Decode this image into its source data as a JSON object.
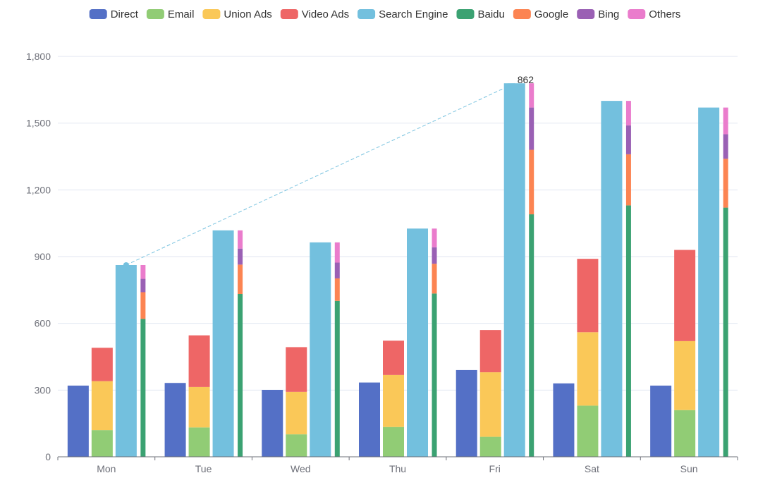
{
  "chart_data": {
    "type": "bar",
    "stacked_groups": true,
    "categories": [
      "Mon",
      "Tue",
      "Wed",
      "Thu",
      "Fri",
      "Sat",
      "Sun"
    ],
    "ylim": [
      0,
      1800
    ],
    "yticks": [
      0,
      300,
      600,
      900,
      1200,
      1500,
      1800
    ],
    "ytick_labels": [
      "0",
      "300",
      "600",
      "900",
      "1,200",
      "1,500",
      "1,800"
    ],
    "grid": true,
    "legend_position": "top",
    "series": [
      {
        "name": "Direct",
        "stack": "direct",
        "color": "#5470c6",
        "values": [
          320,
          332,
          301,
          334,
          390,
          330,
          320
        ]
      },
      {
        "name": "Email",
        "stack": "ad",
        "color": "#91cc75",
        "values": [
          120,
          132,
          101,
          134,
          90,
          230,
          210
        ]
      },
      {
        "name": "Union Ads",
        "stack": "ad",
        "color": "#fac858",
        "values": [
          220,
          182,
          191,
          234,
          290,
          330,
          310
        ]
      },
      {
        "name": "Video Ads",
        "stack": "ad",
        "color": "#ee6666",
        "values": [
          150,
          232,
          201,
          154,
          190,
          330,
          410
        ]
      },
      {
        "name": "Search Engine",
        "stack": "search",
        "color": "#73c0de",
        "values": [
          862,
          1018,
          964,
          1026,
          1679,
          1600,
          1570
        ]
      },
      {
        "name": "Baidu",
        "stack": "engines",
        "color": "#3ba272",
        "values": [
          620,
          732,
          701,
          734,
          1090,
          1130,
          1120
        ]
      },
      {
        "name": "Google",
        "stack": "engines",
        "color": "#fc8452",
        "values": [
          120,
          132,
          101,
          134,
          290,
          230,
          220
        ]
      },
      {
        "name": "Bing",
        "stack": "engines",
        "color": "#9a60b4",
        "values": [
          60,
          72,
          71,
          74,
          190,
          130,
          110
        ]
      },
      {
        "name": "Others",
        "stack": "engines",
        "color": "#ea7ccc",
        "values": [
          62,
          82,
          91,
          84,
          109,
          110,
          120
        ]
      }
    ],
    "annotation": {
      "series": "Search Engine",
      "from_category": "Mon",
      "to_category": "Fri",
      "label": "862",
      "color": "#73c0de"
    }
  }
}
